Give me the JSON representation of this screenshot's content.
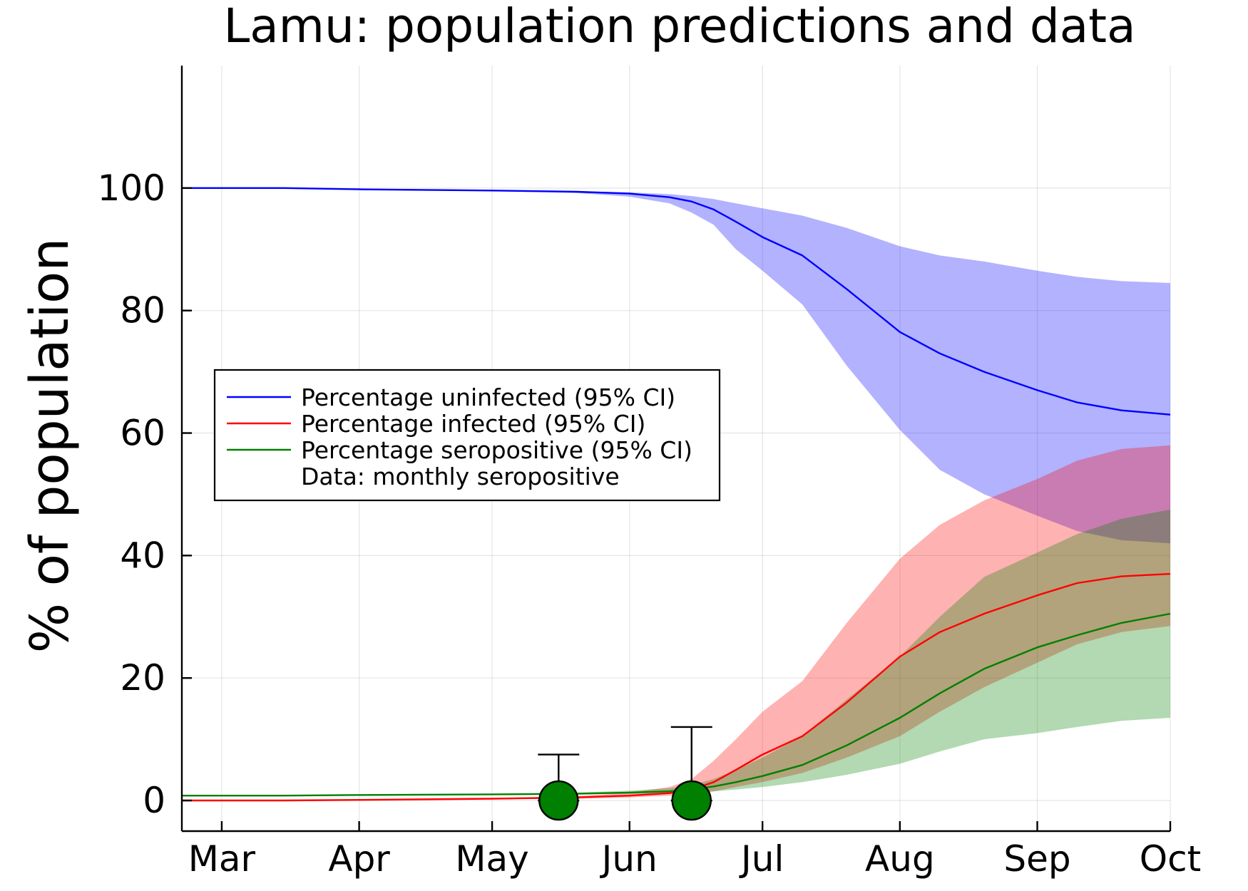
{
  "chart_data": {
    "type": "area",
    "title": "Lamu: population predictions and data",
    "xlabel": "",
    "ylabel": "% of population",
    "x_ticks": [
      {
        "label": "Mar",
        "date": "2020-03-01"
      },
      {
        "label": "Apr",
        "date": "2020-04-01"
      },
      {
        "label": "May",
        "date": "2020-05-01"
      },
      {
        "label": "Jun",
        "date": "2020-06-01"
      },
      {
        "label": "Jul",
        "date": "2020-07-01"
      },
      {
        "label": "Aug",
        "date": "2020-08-01"
      },
      {
        "label": "Sep",
        "date": "2020-09-01"
      },
      {
        "label": "Oct",
        "date": "2020-10-01"
      }
    ],
    "y_ticks": [
      0,
      20,
      40,
      60,
      80,
      100
    ],
    "xlim": [
      "2020-02-21",
      "2020-10-01"
    ],
    "ylim": [
      -5,
      120
    ],
    "grid": true,
    "legend_position": "center-left",
    "series": [
      {
        "name": "Percentage uninfected (95% CI)",
        "color": "#0000ff",
        "band_color": "#b3b3ff",
        "x": [
          "2020-02-21",
          "2020-03-15",
          "2020-04-01",
          "2020-05-01",
          "2020-05-20",
          "2020-06-01",
          "2020-06-10",
          "2020-06-15",
          "2020-06-20",
          "2020-06-25",
          "2020-07-01",
          "2020-07-10",
          "2020-07-20",
          "2020-08-01",
          "2020-08-10",
          "2020-08-20",
          "2020-09-01",
          "2020-09-10",
          "2020-09-20",
          "2020-10-01"
        ],
        "values": [
          100,
          100,
          99.8,
          99.6,
          99.4,
          99.1,
          98.5,
          97.8,
          96.5,
          94.5,
          92,
          89,
          83.5,
          76.5,
          73,
          70,
          67,
          65,
          63.7,
          63
        ],
        "lower": [
          100,
          100,
          99.8,
          99.5,
          99.2,
          98.6,
          97.5,
          96,
          94,
          90,
          86.5,
          81,
          71,
          60.5,
          54,
          50,
          46.5,
          44,
          42.5,
          42
        ],
        "upper": [
          100,
          100,
          99.8,
          99.7,
          99.5,
          99.3,
          99,
          98.7,
          98.2,
          97.5,
          96.7,
          95.5,
          93.5,
          90.5,
          89,
          88,
          86.5,
          85.5,
          84.8,
          84.5
        ]
      },
      {
        "name": "Percentage infected (95% CI)",
        "color": "#ff0000",
        "band_color": "#ffb3b3",
        "x": [
          "2020-02-21",
          "2020-03-15",
          "2020-04-01",
          "2020-05-01",
          "2020-05-20",
          "2020-06-01",
          "2020-06-10",
          "2020-06-15",
          "2020-06-20",
          "2020-06-25",
          "2020-07-01",
          "2020-07-10",
          "2020-07-20",
          "2020-08-01",
          "2020-08-10",
          "2020-08-20",
          "2020-09-01",
          "2020-09-10",
          "2020-09-20",
          "2020-10-01"
        ],
        "values": [
          0,
          0,
          0.1,
          0.3,
          0.5,
          0.8,
          1.2,
          1.8,
          3,
          5,
          7.5,
          10.5,
          16,
          23.5,
          27.5,
          30.5,
          33.5,
          35.5,
          36.6,
          37
        ],
        "lower": [
          0,
          0,
          0.1,
          0.2,
          0.3,
          0.5,
          0.8,
          1,
          1.5,
          2.2,
          3,
          4.5,
          7,
          10.5,
          14.5,
          18.5,
          22.5,
          25.5,
          27.5,
          28.5
        ],
        "upper": [
          0,
          0,
          0.1,
          0.4,
          0.7,
          1.3,
          2.2,
          3.5,
          6.5,
          10,
          14.5,
          19.5,
          29,
          39.5,
          45,
          49,
          52.5,
          55.5,
          57.4,
          58
        ]
      },
      {
        "name": "Percentage seropositive (95% CI)",
        "color": "#008000",
        "band_color": "#80c080",
        "x": [
          "2020-02-21",
          "2020-03-15",
          "2020-04-01",
          "2020-05-01",
          "2020-05-20",
          "2020-06-01",
          "2020-06-10",
          "2020-06-15",
          "2020-06-20",
          "2020-06-25",
          "2020-07-01",
          "2020-07-10",
          "2020-07-20",
          "2020-08-01",
          "2020-08-10",
          "2020-08-20",
          "2020-09-01",
          "2020-09-10",
          "2020-09-20",
          "2020-10-01"
        ],
        "values": [
          0.8,
          0.8,
          0.9,
          1,
          1.1,
          1.3,
          1.5,
          1.8,
          2.3,
          3,
          4,
          5.8,
          9,
          13.5,
          17.5,
          21.5,
          25,
          27,
          29,
          30.5
        ],
        "lower": [
          0.8,
          0.8,
          0.9,
          1,
          1,
          1.1,
          1.2,
          1.3,
          1.5,
          1.8,
          2.2,
          3,
          4.2,
          6,
          8,
          10,
          11,
          12,
          13,
          13.5
        ],
        "upper": [
          0.8,
          0.8,
          0.9,
          1.1,
          1.3,
          1.6,
          2,
          2.5,
          3.5,
          5,
          7,
          10.5,
          16.5,
          23.5,
          30,
          36.5,
          40.5,
          43.5,
          46,
          47.5
        ]
      }
    ],
    "data_points": {
      "name": "Data: monthly seropositive",
      "color": "#008000",
      "points": [
        {
          "x": "2020-05-16",
          "y": 0,
          "lower": 0,
          "upper": 7.5
        },
        {
          "x": "2020-06-15",
          "y": 0,
          "lower": 0,
          "upper": 12
        }
      ]
    }
  }
}
